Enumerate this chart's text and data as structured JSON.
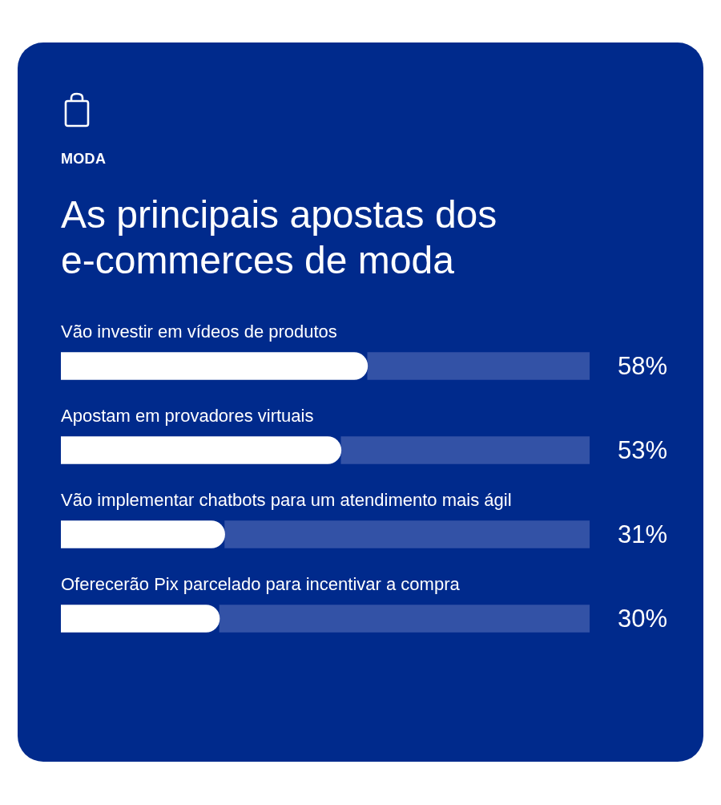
{
  "chart_data": {
    "type": "bar",
    "orientation": "horizontal",
    "stacked": true,
    "subtitle": "MODA",
    "title": "As principais apostas dos e-commerces de moda",
    "categories": [
      "Vão investir em vídeos de produtos",
      "Apostam em provadores virtuais",
      "Vão implementar chatbots para um atendimento mais ágil",
      "Oferecerão Pix parcelado para incentivar a compra"
    ],
    "series": [
      {
        "color": "#ffffff",
        "values": [
          58,
          53,
          31,
          30
        ],
        "value_labels": [
          "58%",
          "53%",
          "31%",
          "30%"
        ]
      },
      {
        "color": "#3352a6",
        "values": [
          42,
          47,
          69,
          70
        ]
      }
    ],
    "xlim": [
      0,
      100
    ],
    "tick_labels": false
  }
}
